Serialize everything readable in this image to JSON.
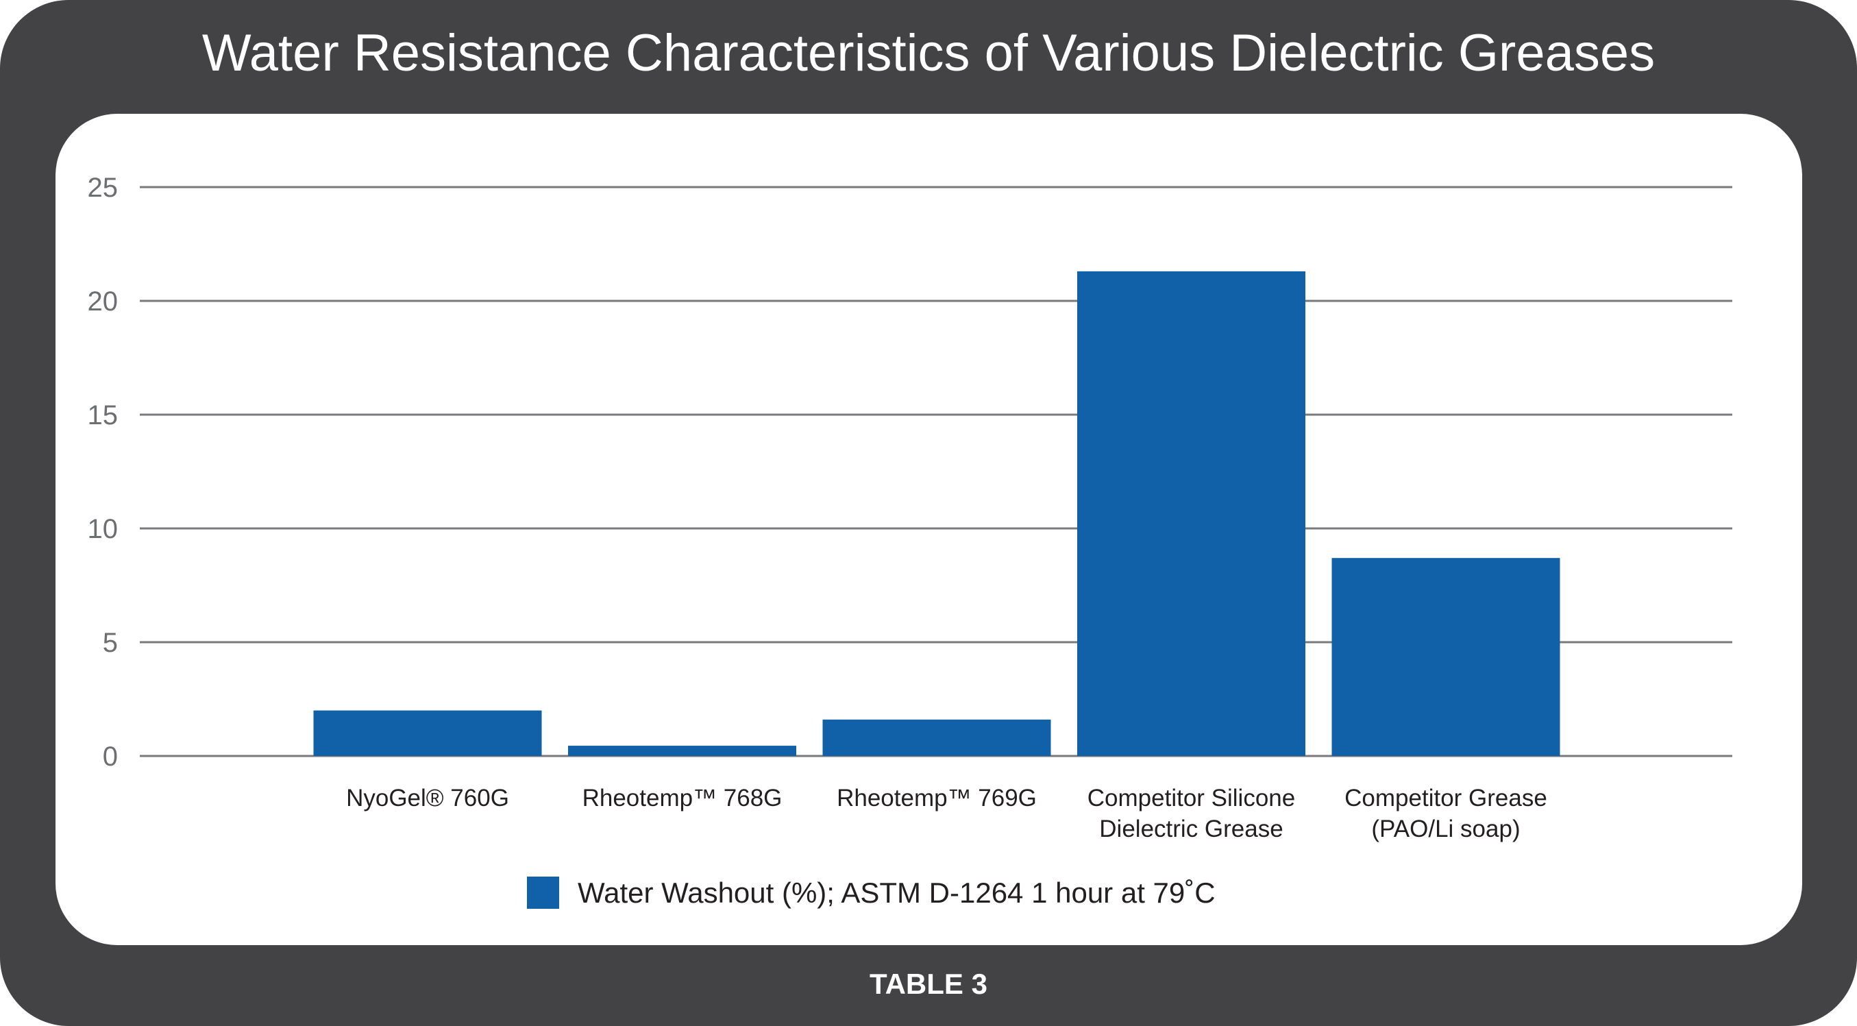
{
  "caption": "TABLE 3",
  "colors": {
    "bar": "#1161a9",
    "frame": "#434345",
    "grid": "#7a7a7c"
  },
  "chart_data": {
    "type": "bar",
    "title": "Water Resistance Characteristics of Various Dielectric Greases",
    "categories": [
      [
        "NyoGel® 760G"
      ],
      [
        "Rheotemp™ 768G"
      ],
      [
        "Rheotemp™ 769G"
      ],
      [
        "Competitor Silicone",
        "Dielectric Grease"
      ],
      [
        "Competitor Grease",
        "(PAO/Li soap)"
      ]
    ],
    "series": [
      {
        "name": "Water Washout (%); ASTM D-1264 1 hour at 79˚C",
        "values": [
          2.0,
          0.45,
          1.6,
          21.3,
          8.7
        ]
      }
    ],
    "yticks": [
      0,
      5,
      10,
      15,
      20,
      25
    ],
    "ylim": [
      0,
      25
    ],
    "xlabel": "",
    "ylabel": "",
    "grid": true,
    "legend": "bottom-center"
  }
}
